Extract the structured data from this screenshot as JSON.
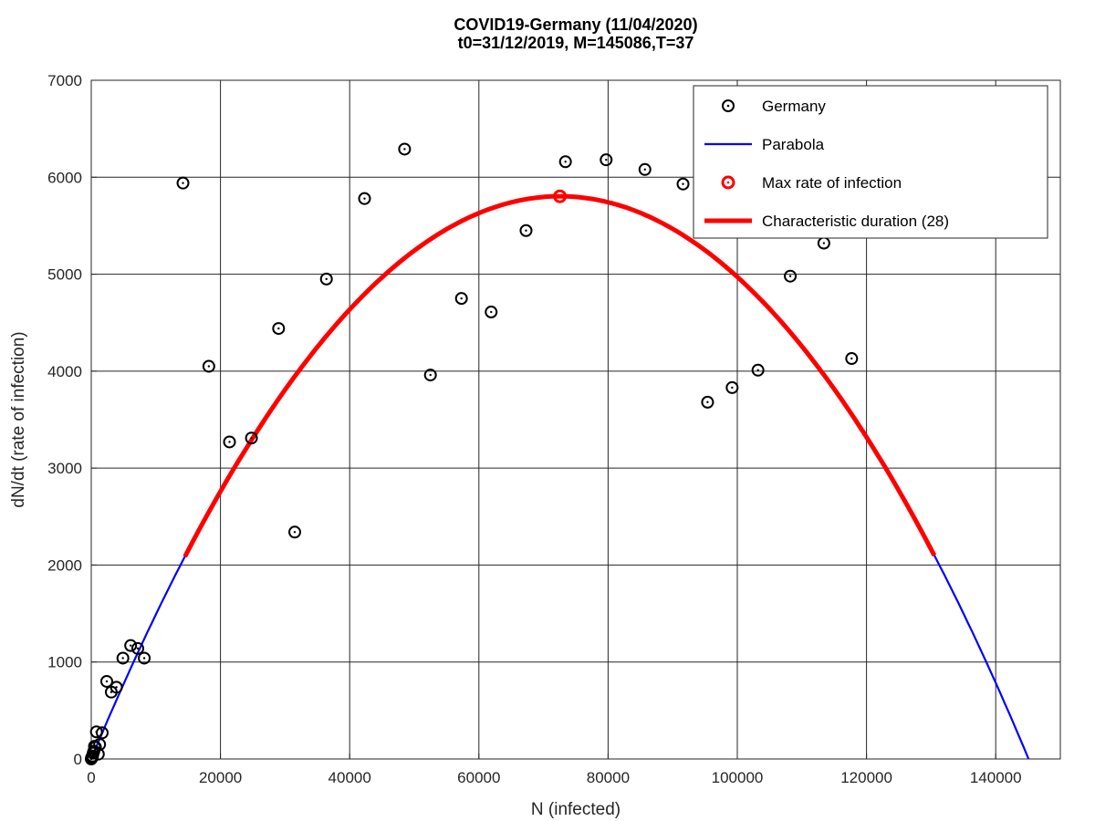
{
  "chart_data": {
    "type": "scatter",
    "title": "COVID19-Germany (11/04/2020)",
    "subtitle": "t0=31/12/2019, M=145086,T=37",
    "xlabel": "N (infected)",
    "ylabel": "dN/dt (rate of infection)",
    "xlim": [
      0,
      150000
    ],
    "ylim": [
      0,
      7000
    ],
    "xticks": [
      0,
      20000,
      40000,
      60000,
      80000,
      100000,
      120000,
      140000
    ],
    "yticks": [
      0,
      1000,
      2000,
      3000,
      4000,
      5000,
      6000,
      7000
    ],
    "grid": true,
    "legend_position": "top-right",
    "colors": {
      "data": "#000000",
      "parabola": "#0000ff",
      "max": "#ff0000",
      "duration": "#ff0000"
    },
    "legend": [
      "Germany",
      "Parabola",
      "Max rate of infection",
      "Characteristic duration (28)"
    ],
    "series": [
      {
        "name": "Germany",
        "kind": "scatter",
        "points": [
          [
            0,
            0
          ],
          [
            50,
            10
          ],
          [
            100,
            20
          ],
          [
            150,
            15
          ],
          [
            200,
            30
          ],
          [
            300,
            60
          ],
          [
            400,
            80
          ],
          [
            500,
            130
          ],
          [
            650,
            120
          ],
          [
            800,
            280
          ],
          [
            1100,
            50
          ],
          [
            1300,
            150
          ],
          [
            1700,
            270
          ],
          [
            2400,
            800
          ],
          [
            3100,
            690
          ],
          [
            3900,
            740
          ],
          [
            4900,
            1040
          ],
          [
            6100,
            1170
          ],
          [
            7200,
            1140
          ],
          [
            8200,
            1040
          ],
          [
            14200,
            5940
          ],
          [
            18200,
            4050
          ],
          [
            21400,
            3270
          ],
          [
            24800,
            3310
          ],
          [
            29000,
            4440
          ],
          [
            31500,
            2340
          ],
          [
            36400,
            4950
          ],
          [
            42300,
            5780
          ],
          [
            48500,
            6290
          ],
          [
            52500,
            3960
          ],
          [
            57300,
            4750
          ],
          [
            61900,
            4610
          ],
          [
            67300,
            5450
          ],
          [
            73400,
            6160
          ],
          [
            79700,
            6180
          ],
          [
            85700,
            6080
          ],
          [
            91600,
            5930
          ],
          [
            95400,
            3680
          ],
          [
            99200,
            3830
          ],
          [
            103200,
            4010
          ],
          [
            108200,
            4980
          ],
          [
            113400,
            5320
          ],
          [
            117700,
            4130
          ]
        ]
      },
      {
        "name": "Parabola",
        "kind": "line",
        "a": 0.16,
        "M": 145086,
        "x_range": [
          0,
          145086
        ]
      },
      {
        "name": "Max rate of infection",
        "kind": "point",
        "x": 72543,
        "y": 5803
      },
      {
        "name": "Characteristic duration (28)",
        "kind": "line",
        "a": 0.16,
        "M": 145086,
        "x_range": [
          14500,
          130500
        ]
      }
    ]
  }
}
